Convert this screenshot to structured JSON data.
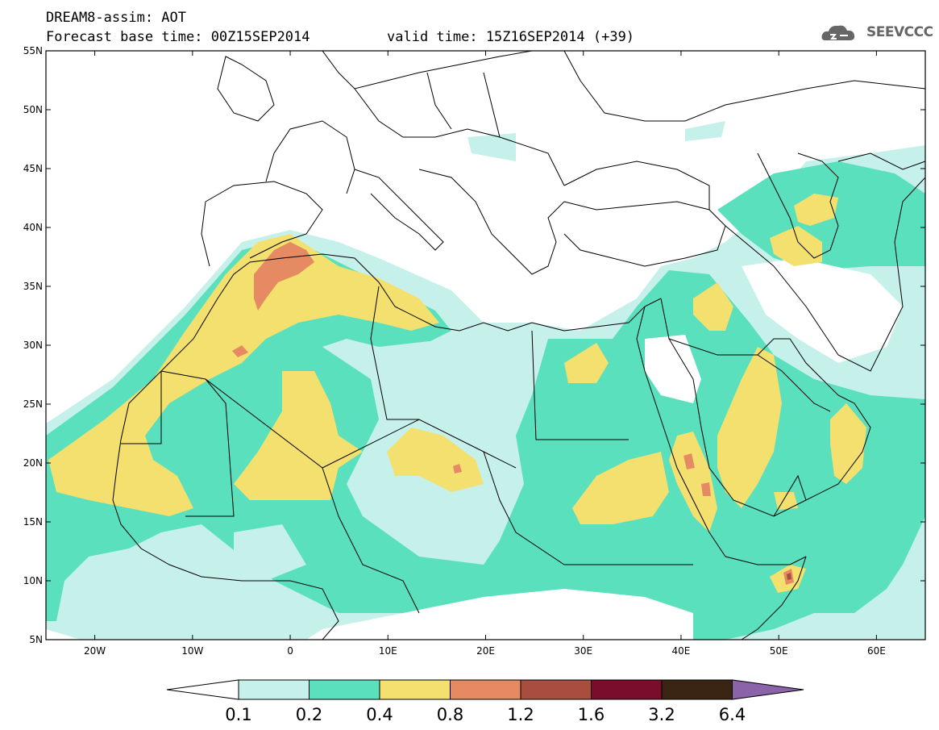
{
  "header": {
    "title_line1": "DREAM8-assim: AOT",
    "base_time_line": "Forecast base time: 00Z15SEP2014",
    "valid_time_line": "valid time: 15Z16SEP2014 (+39)",
    "logo_text": "SEEVCCC"
  },
  "map": {
    "lat_labels": [
      "55N",
      "50N",
      "45N",
      "40N",
      "35N",
      "30N",
      "25N",
      "20N",
      "15N",
      "10N",
      "5N"
    ],
    "lon_labels": [
      "20W",
      "10W",
      "0",
      "10E",
      "20E",
      "30E",
      "40E",
      "50E",
      "60E"
    ],
    "background_color": "#ffffff",
    "land_outline_color": "#000000"
  },
  "colorbar": {
    "levels": [
      "0.1",
      "0.2",
      "0.4",
      "0.8",
      "1.2",
      "1.6",
      "3.2",
      "6.4"
    ],
    "colors": [
      "#ffffff",
      "#c6f0ea",
      "#5ae0bd",
      "#f3e06e",
      "#e58a62",
      "#a94d3f",
      "#7a0d2b",
      "#3a2413",
      "#8b63a8"
    ]
  }
}
